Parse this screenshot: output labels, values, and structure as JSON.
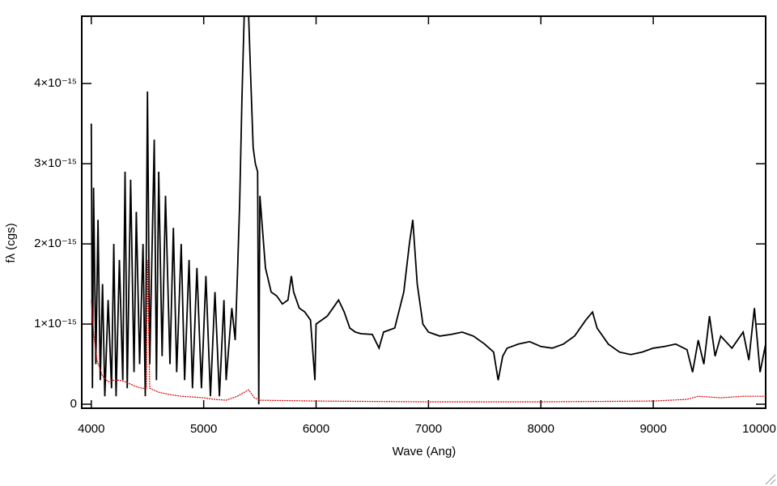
{
  "chart_data": {
    "type": "line",
    "xlabel": "Wave (Ang)",
    "ylabel": "fλ (cgs)",
    "xlim": [
      3915,
      10000
    ],
    "ylim": [
      -5e-17,
      4.84e-15
    ],
    "xticks": [
      4000,
      5000,
      6000,
      7000,
      8000,
      9000,
      10000
    ],
    "yticks": [
      0,
      {
        "value": 1e-15,
        "label": "1×10⁻¹⁵"
      },
      {
        "value": 2e-15,
        "label": "2×10⁻¹⁵"
      },
      {
        "value": 3e-15,
        "label": "3×10⁻¹⁵"
      },
      {
        "value": 4e-15,
        "label": "4×10⁻¹⁵"
      }
    ],
    "series": [
      {
        "color": "#000000",
        "x": [
          4000,
          4010,
          4020,
          4040,
          4060,
          4080,
          4100,
          4120,
          4150,
          4180,
          4200,
          4220,
          4250,
          4280,
          4300,
          4320,
          4350,
          4380,
          4400,
          4430,
          4460,
          4480,
          4500,
          4520,
          4560,
          4580,
          4600,
          4630,
          4660,
          4700,
          4730,
          4760,
          4800,
          4830,
          4870,
          4900,
          4940,
          4980,
          5020,
          5060,
          5100,
          5140,
          5180,
          5200,
          5250,
          5280,
          5300,
          5320,
          5340,
          5360,
          5380,
          5400,
          5420,
          5440,
          5460,
          5480,
          5490,
          5500,
          5550,
          5600,
          5650,
          5700,
          5750,
          5780,
          5800,
          5850,
          5900,
          5950,
          5990,
          6000,
          6050,
          6100,
          6150,
          6200,
          6250,
          6300,
          6350,
          6400,
          6500,
          6560,
          6600,
          6700,
          6780,
          6830,
          6860,
          6900,
          6950,
          7000,
          7100,
          7200,
          7300,
          7400,
          7500,
          7580,
          7620,
          7660,
          7700,
          7800,
          7900,
          8000,
          8100,
          8200,
          8300,
          8400,
          8460,
          8500,
          8600,
          8700,
          8800,
          8900,
          9000,
          9100,
          9200,
          9300,
          9350,
          9400,
          9450,
          9500,
          9550,
          9600,
          9700,
          9800,
          9850,
          9900,
          9950,
          10000
        ],
        "values": [
          3.5e-15,
          2e-16,
          2.7e-15,
          5e-16,
          2.3e-15,
          3e-16,
          1.5e-15,
          1e-16,
          1.3e-15,
          2e-16,
          2e-15,
          1e-16,
          1.8e-15,
          3e-16,
          2.9e-15,
          2e-16,
          2.8e-15,
          4e-16,
          2.4e-15,
          5e-16,
          2e-15,
          1e-16,
          3.9e-15,
          5e-16,
          3.3e-15,
          3e-16,
          2.9e-15,
          6e-16,
          2.6e-15,
          5e-16,
          2.2e-15,
          4e-16,
          2e-15,
          3e-16,
          1.8e-15,
          2e-16,
          1.7e-15,
          2e-16,
          1.6e-15,
          1e-16,
          1.4e-15,
          1e-16,
          1.3e-15,
          3e-16,
          1.2e-15,
          8e-16,
          1.6e-15,
          2.5e-15,
          3.8e-15,
          4.84e-15,
          4.84e-15,
          4.84e-15,
          4e-15,
          3.2e-15,
          3e-15,
          2.9e-15,
          0,
          2.6e-15,
          1.7e-15,
          1.4e-15,
          1.35e-15,
          1.25e-15,
          1.3e-15,
          1.6e-15,
          1.4e-15,
          1.2e-15,
          1.15e-15,
          1.05e-15,
          3e-16,
          1e-15,
          1.05e-15,
          1.1e-15,
          1.2e-15,
          1.3e-15,
          1.15e-15,
          9.5e-16,
          9e-16,
          8.8e-16,
          8.7e-16,
          7e-16,
          9e-16,
          9.5e-16,
          1.4e-15,
          2e-15,
          2.3e-15,
          1.5e-15,
          1e-15,
          9e-16,
          8.5e-16,
          8.7e-16,
          9e-16,
          8.5e-16,
          7.5e-16,
          6.5e-16,
          3e-16,
          6e-16,
          7e-16,
          7.5e-16,
          7.8e-16,
          7.2e-16,
          7e-16,
          7.5e-16,
          8.5e-16,
          1.05e-15,
          1.15e-15,
          9.5e-16,
          7.5e-16,
          6.5e-16,
          6.2e-16,
          6.5e-16,
          7e-16,
          7.2e-16,
          7.5e-16,
          6.8e-16,
          4e-16,
          8e-16,
          5e-16,
          1.1e-15,
          6e-16,
          8.5e-16,
          7e-16,
          9e-16,
          5.5e-16,
          1.2e-15,
          4e-16,
          7.5e-16
        ]
      },
      {
        "color": "#dd0000",
        "x": [
          4000,
          4020,
          4050,
          4100,
          4150,
          4200,
          4250,
          4300,
          4350,
          4400,
          4450,
          4490,
          4500,
          4520,
          4600,
          4700,
          4800,
          4900,
          5000,
          5100,
          5200,
          5300,
          5400,
          5450,
          5500,
          6000,
          7000,
          8000,
          9000,
          9300,
          9400,
          9600,
          9800,
          10000
        ],
        "values": [
          1.3e-15,
          9e-16,
          5.5e-16,
          3.5e-16,
          2.8e-16,
          3e-16,
          3e-16,
          2.8e-16,
          2.5e-16,
          2.2e-16,
          2e-16,
          2e-16,
          1.8e-15,
          2e-16,
          1.5e-16,
          1.2e-16,
          1e-16,
          9e-17,
          8e-17,
          6e-17,
          5e-17,
          1e-16,
          1.8e-16,
          8e-17,
          5e-17,
          4e-17,
          3e-17,
          3e-17,
          4e-17,
          6e-17,
          1e-16,
          8e-17,
          1e-16,
          1e-16
        ]
      }
    ]
  }
}
